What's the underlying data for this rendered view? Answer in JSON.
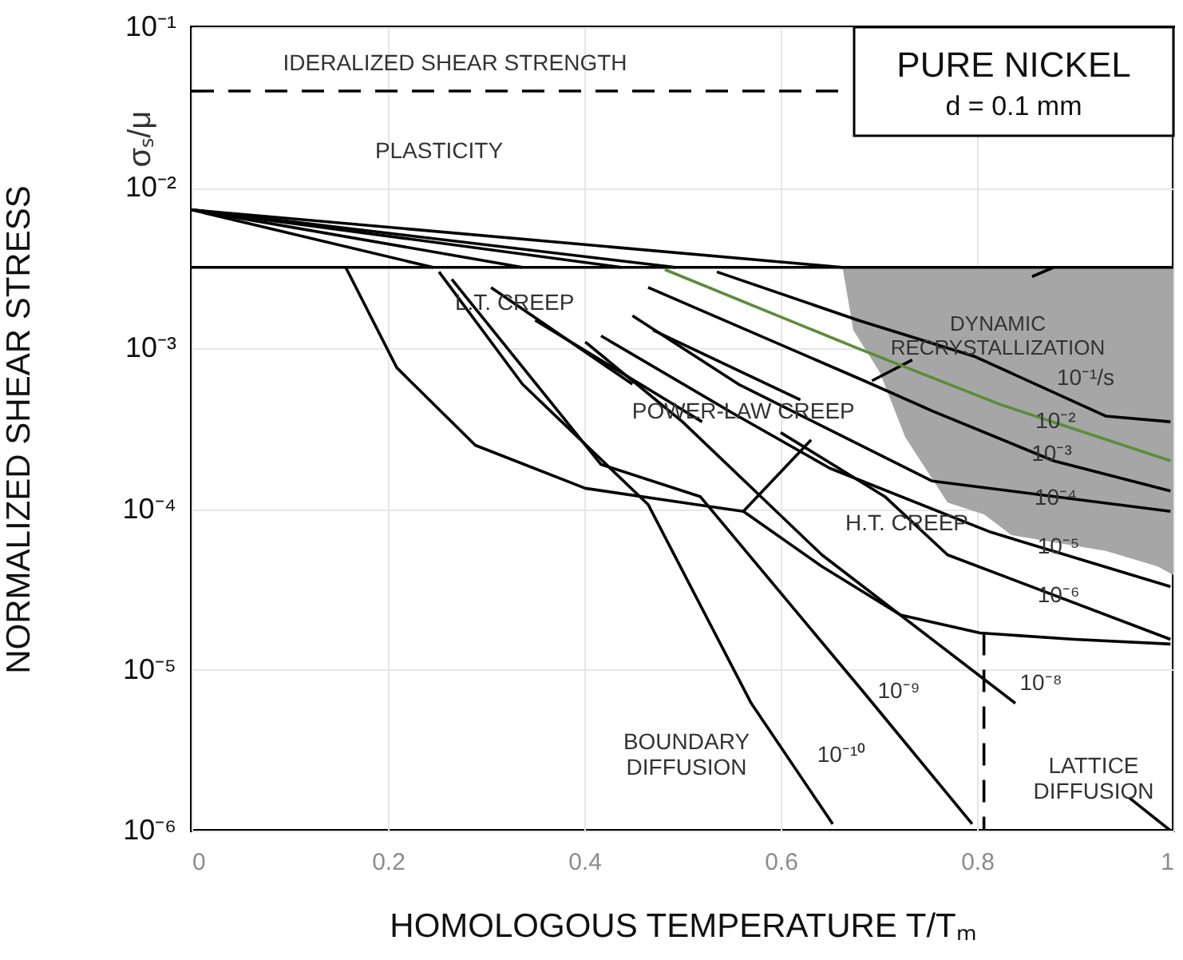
{
  "chart_data": {
    "type": "line",
    "title": "PURE NICKEL",
    "subtitle": "d = 0.1 mm",
    "xlabel": "HOMOLOGOUS TEMPERATURE    T/Tₘ",
    "ylabel": "NORMALIZED SHEAR STRESS",
    "log": "y",
    "grid": true,
    "xlim": [
      0,
      1
    ],
    "ylim": [
      1e-06,
      0.1
    ],
    "xticks": [
      {
        "value": 0,
        "label": "0"
      },
      {
        "value": 0.2,
        "label": "0.2"
      },
      {
        "value": 0.4,
        "label": "0.4"
      },
      {
        "value": 0.6,
        "label": "0.6"
      },
      {
        "value": 0.8,
        "label": "0.8"
      },
      {
        "value": 1,
        "label": "1"
      }
    ],
    "yticks": [
      {
        "value": 1e-06,
        "label": "10⁻⁶"
      },
      {
        "value": 1e-05,
        "label": "10⁻⁵"
      },
      {
        "value": 0.0001,
        "label": "10⁻⁴"
      },
      {
        "value": 0.001,
        "label": "10⁻³"
      },
      {
        "value": 0.01,
        "label": "10⁻²"
      },
      {
        "value": 0.1,
        "label": "10⁻¹"
      }
    ],
    "series": [
      {
        "color": "#000000",
        "x": [
          0,
          0.663,
          0.674,
          0.701,
          0.727,
          0.77,
          0.807,
          0.835,
          0.931,
          0.984,
          1
        ],
        "values": [
          0.0032,
          0.0032,
          0.0032,
          0.0032,
          0.0032,
          0.0032,
          0.0032,
          0.0032,
          0.0032,
          0.0032,
          0.0032
        ],
        "upper": [
          0.0032,
          0.0032,
          0.0032,
          0.0032,
          0.0032,
          0.0032,
          0.0032,
          0.0032,
          0.0032,
          0.0032,
          0.0032
        ],
        "lower": [
          0.0032,
          0.0032,
          0.0013,
          0.00071,
          0.00028,
          0.00011,
          9.3e-05,
          6.9e-05,
          5.5e-05,
          4.4e-05,
          3.9e-05
        ]
      },
      {
        "color": "#000000",
        "line_style": "dashed",
        "x": [
          0,
          0.667
        ],
        "values": [
          0.04,
          0.04
        ]
      },
      {
        "color": "#000000",
        "x": [
          0,
          0.246
        ],
        "values": [
          0.0073,
          0.0032
        ]
      },
      {
        "color": "#000000",
        "x": [
          0,
          0.337
        ],
        "values": [
          0.0073,
          0.0032
        ]
      },
      {
        "color": "#000000",
        "x": [
          0,
          0.438
        ],
        "values": [
          0.0073,
          0.0032
        ]
      },
      {
        "color": "#000000",
        "x": [
          0,
          0.493
        ],
        "values": [
          0.0073,
          0.0032
        ]
      },
      {
        "color": "#000000",
        "x": [
          0,
          0.663
        ],
        "values": [
          0.0073,
          0.0032
        ]
      },
      {
        "color": "#000000",
        "x": [
          0.157,
          0.209,
          0.289,
          0.401,
          0.514,
          0.562,
          0.642,
          0.722,
          0.803,
          0.899,
          0.997
        ],
        "values": [
          0.0032,
          0.00076,
          0.00025,
          0.000135,
          0.000107,
          9.7e-05,
          4.4e-05,
          2.2e-05,
          1.7e-05,
          1.55e-05,
          1.45e-05
        ]
      },
      {
        "color": "#000000",
        "x": [
          0.562,
          0.631
        ],
        "values": [
          9.7e-05,
          0.00027
        ]
      },
      {
        "color": "#000000",
        "x": [
          0.693,
          0.734
        ],
        "values": [
          0.00063,
          0.00085
        ]
      },
      {
        "color": "#000000",
        "x": [
          0.856,
          0.878
        ],
        "values": [
          0.0028,
          0.0032
        ]
      },
      {
        "color": "#000000",
        "line_style": "dashed",
        "x": [
          0.807,
          0.807
        ],
        "values": [
          1.7e-05,
          1e-06
        ]
      },
      {
        "color": "#000000",
        "x": [
          0.535,
          0.679,
          0.798,
          0.931,
          0.997
        ],
        "values": [
          0.003,
          0.0015,
          0.00089,
          0.00038,
          0.00035
        ]
      },
      {
        "color": "#5b8c3a",
        "x": [
          0.482,
          0.679,
          0.823,
          0.997
        ],
        "values": [
          0.0031,
          0.001,
          0.00045,
          0.0002
        ]
      },
      {
        "color": "#000000",
        "x": [
          0.465,
          0.685,
          0.754,
          0.878,
          0.997
        ],
        "values": [
          0.0024,
          0.00063,
          0.00041,
          0.0002,
          0.00013
        ]
      },
      {
        "color": "#000000",
        "x": [
          0.449,
          0.557,
          0.754,
          0.997
        ],
        "values": [
          0.0016,
          0.0006,
          0.00015,
          9.7e-05
        ]
      },
      {
        "color": "#000000",
        "x": [
          0.417,
          0.55,
          0.65,
          0.814,
          0.997
        ],
        "values": [
          0.0012,
          0.0004,
          0.00018,
          7.2e-05,
          3.3e-05
        ]
      },
      {
        "color": "#000000",
        "x": [
          0.6,
          0.706,
          0.77,
          0.997
        ],
        "values": [
          0.0003,
          0.00012,
          5.2e-05,
          1.55e-05
        ]
      },
      {
        "color": "#000000",
        "x": [
          0.401,
          0.5,
          0.642,
          0.839
        ],
        "values": [
          0.0011,
          0.00035,
          5.2e-05,
          6.2e-06
        ]
      },
      {
        "color": "#000000",
        "x": [
          0.265,
          0.417,
          0.518,
          0.685,
          0.795
        ],
        "values": [
          0.0027,
          0.00019,
          0.00012,
          7.2e-06,
          1.1e-06
        ]
      },
      {
        "color": "#000000",
        "x": [
          0.252,
          0.337,
          0.465,
          0.57,
          0.653
        ],
        "values": [
          0.003,
          0.0006,
          0.000107,
          6.2e-06,
          1.1e-06
        ]
      },
      {
        "color": "#000000",
        "x": [
          0.305,
          0.449
        ],
        "values": [
          0.0024,
          0.0006
        ]
      },
      {
        "color": "#000000",
        "x": [
          0.35,
          0.52
        ],
        "values": [
          0.0015,
          0.00035
        ]
      },
      {
        "color": "#000000",
        "x": [
          0.47,
          0.62
        ],
        "values": [
          0.0013,
          0.00048
        ]
      },
      {
        "color": "#000000",
        "x": [
          0.955,
          0.997
        ],
        "values": [
          1.6e-06,
          1e-06
        ]
      }
    ],
    "annotations": [
      "IDERALIZED SHEAR STRENGTH",
      "PLASTICITY",
      {
        "text": "L.T. CREEP",
        "x": 0.329,
        "y": 0.0019
      },
      {
        "text": "POWER-LAW CREEP",
        "x": 0.562,
        "y": 0.0004
      },
      "H.T. CREEP",
      "DYNAMIC\nRECRYSTALLIZATION",
      "BOUNDARY\nDIFFUSION",
      "LATTICE\nDIFFUSION",
      "10⁻¹/s",
      {
        "text": "10⁻²",
        "x": 0.88,
        "y": 0.00035
      },
      {
        "text": "10⁻³",
        "x": 0.876,
        "y": 0.00022
      },
      {
        "text": "10⁻⁴",
        "x": 0.88,
        "y": 0.000117
      },
      {
        "text": "10⁻⁵",
        "x": 0.883,
        "y": 5.8e-05
      },
      {
        "text": "10⁻⁶",
        "x": 0.883,
        "y": 2.9e-05
      },
      "10⁻⁸",
      "10⁻⁹",
      "10⁻¹⁰",
      "σₛ/μ"
    ]
  }
}
